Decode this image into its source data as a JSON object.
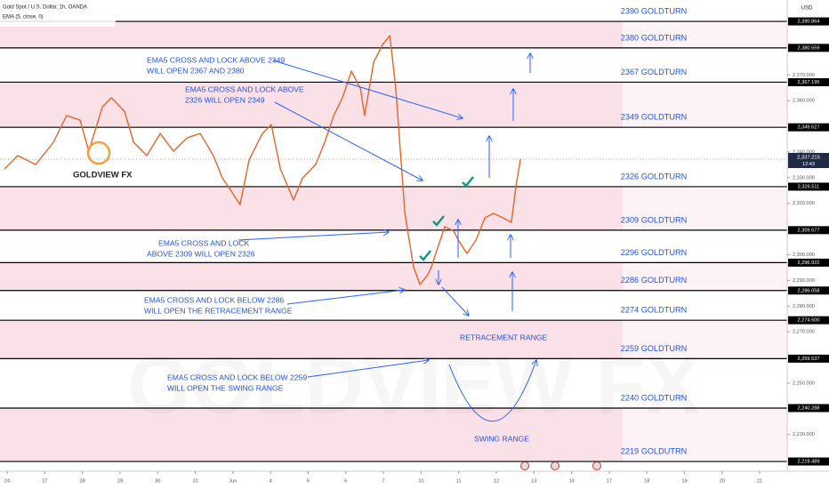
{
  "header": {
    "symbol": "Gold Spot / U.S. Dollar, 1h, OANDA",
    "indicator": "EMA (5, close, 0)",
    "currency": "USD",
    "logo": "GOLDVIEW FX",
    "watermark": "GOLDVIEW FX"
  },
  "chart_data": {
    "type": "line",
    "x": [
      -0.07,
      0.28,
      0.76,
      1.23,
      1.58,
      1.94,
      2.17,
      2.53,
      2.77,
      3.12,
      3.36,
      3.71,
      4.07,
      4.42,
      4.78,
      5.13,
      5.48,
      5.72,
      5.96,
      6.19,
      6.43,
      6.78,
      7.02,
      7.26,
      7.61,
      7.85,
      8.2,
      8.44,
      8.68,
      8.91,
      9.15,
      9.39,
      9.5,
      9.74,
      9.98,
      10.17,
      10.33,
      10.45,
      10.57,
      10.8,
      10.97,
      11.16,
      11.28,
      11.39,
      11.51,
      11.63,
      11.87,
      11.99,
      12.22,
      12.46,
      12.7,
      12.93,
      13.17,
      13.4,
      13.52,
      13.64
    ],
    "series": [
      {
        "color": "#e0662a",
        "values": [
          2333.4,
          2338.6,
          2335.1,
          2343.8,
          2354.2,
          2352.4,
          2340.3,
          2357.6,
          2361.1,
          2355.9,
          2343.8,
          2338.6,
          2347.2,
          2340.3,
          2345.5,
          2347.2,
          2338.6,
          2329.9,
          2324.7,
          2319.5,
          2336.9,
          2347.2,
          2350.7,
          2333.4,
          2321.3,
          2329.9,
          2335.1,
          2343.8,
          2354.2,
          2361.1,
          2371.5,
          2364.6,
          2354.2,
          2375.0,
          2381.9,
          2385.3,
          2364.6,
          2340.3,
          2316.1,
          2295.3,
          2288.4,
          2291.8,
          2295.3,
          2300.5,
          2305.7,
          2310.9,
          2309.2,
          2305.7,
          2300.5,
          2305.7,
          2314.4,
          2316.1,
          2314.4,
          2312.6,
          2326.5,
          2337.2
        ]
      }
    ],
    "xlim": [
      -0.19,
      20.73
    ],
    "xticks": [
      {
        "value": 0,
        "label": "24"
      },
      {
        "value": 1,
        "label": "27"
      },
      {
        "value": 2,
        "label": "28"
      },
      {
        "value": 3,
        "label": "29"
      },
      {
        "value": 4,
        "label": "30"
      },
      {
        "value": 5,
        "label": "31"
      },
      {
        "value": 6,
        "label": "Jun"
      },
      {
        "value": 7,
        "label": "4"
      },
      {
        "value": 8,
        "label": "5"
      },
      {
        "value": 9,
        "label": "6"
      },
      {
        "value": 10,
        "label": "7"
      },
      {
        "value": 11,
        "label": "10"
      },
      {
        "value": 12,
        "label": "11"
      },
      {
        "value": 13,
        "label": "12"
      },
      {
        "value": 14,
        "label": "13"
      },
      {
        "value": 15,
        "label": "14"
      },
      {
        "value": 16,
        "label": "17"
      },
      {
        "value": 17,
        "label": "18"
      },
      {
        "value": 18,
        "label": "19"
      },
      {
        "value": 19,
        "label": "20"
      },
      {
        "value": 20,
        "label": "21"
      }
    ],
    "ylim": [
      2215.7,
      2399.2
    ],
    "yticks": [
      {
        "value": 2370,
        "label": "2,370.000"
      },
      {
        "value": 2360,
        "label": "2,360.000"
      },
      {
        "value": 2340,
        "label": "2,340.000"
      },
      {
        "value": 2330,
        "label": "2,330.000"
      },
      {
        "value": 2320,
        "label": "2,320.000"
      },
      {
        "value": 2300,
        "label": "2,300.000"
      },
      {
        "value": 2290,
        "label": "2,290.000"
      },
      {
        "value": 2280,
        "label": "2,280.000"
      },
      {
        "value": 2270,
        "label": "2,270.000"
      },
      {
        "value": 2250,
        "label": "2,250.000"
      },
      {
        "value": 2230,
        "label": "2,230.000"
      }
    ],
    "grid": false,
    "levels": [
      {
        "value": 2390.864,
        "label": "2,390.864",
        "text": "2390 GOLDTURN",
        "shaded": true
      },
      {
        "value": 2380.559,
        "label": "2,380.559",
        "text": "2380 GOLDTURN",
        "shaded": false
      },
      {
        "value": 2367.195,
        "label": "2,367.195",
        "text": "2367 GOLDTURN",
        "shaded": true
      },
      {
        "value": 2349.627,
        "label": "2,349.627",
        "text": "2349 GOLDTURN",
        "shaded": false
      },
      {
        "value": 2326.511,
        "label": "2,326.511",
        "text": "2326 GOLDTURN",
        "shaded": true
      },
      {
        "value": 2309.577,
        "label": "2,309.577",
        "text": "2309 GOLDTURN",
        "shaded": false
      },
      {
        "value": 2296.922,
        "label": "2,296.922",
        "text": "2296 GOLDTURN",
        "shaded": true
      },
      {
        "value": 2286.058,
        "label": "2,286.058",
        "text": "2286 GOLDTURN",
        "shaded": false
      },
      {
        "value": 2274.5,
        "label": "2,274.500",
        "text": "2274 GOLDTURN",
        "shaded": true
      },
      {
        "value": 2259.537,
        "label": "2,259.537",
        "text": "2259 GOLDTURN",
        "shaded": false
      },
      {
        "value": 2240.288,
        "label": "2,240.288",
        "text": "2240 GOLDTURN",
        "shaded": true
      },
      {
        "value": 2219.489,
        "label": "2,219.489",
        "text": "2219 GOLDUTRN",
        "shaded": false
      }
    ],
    "current_price": {
      "value": 2337.215,
      "label": "2,337.215",
      "time": "12:43"
    },
    "annotations": [
      {
        "lines": [
          "EMA5 CROSS AND LOCK ABOVE 2349",
          "WILL OPEN 2367 AND 2380"
        ]
      },
      {
        "lines": [
          "EMA5 CROSS AND LOCK ABOVE",
          "2326 WILL OPEN 2349"
        ]
      },
      {
        "lines": [
          "EMA5 CROSS AND LOCK",
          "ABOVE 2309 WILL OPEN 2326"
        ]
      },
      {
        "lines": [
          "EMA5 CROSS AND LOCK BELOW 2286",
          "WILL OPEN THE RETRACEMENT RANGE"
        ]
      },
      {
        "lines": [
          "EMA5 CROSS AND LOCK BELOW 2259",
          "WILL OPEN THE SWING RANGE"
        ]
      },
      {
        "lines": [
          "RETRACEMENT RANGE"
        ]
      },
      {
        "lines": [
          "SWING RANGE"
        ]
      }
    ]
  }
}
